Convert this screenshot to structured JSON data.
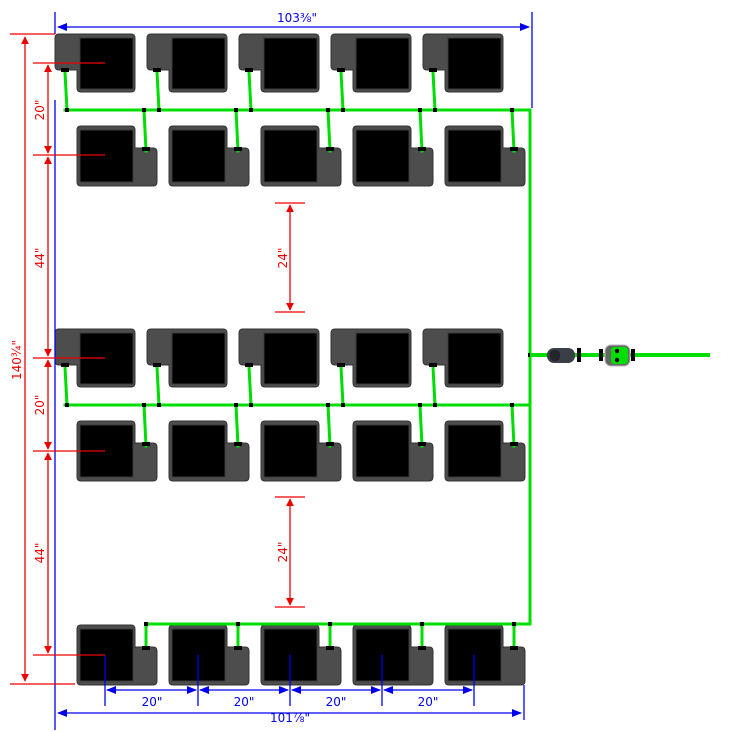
{
  "dimensions": {
    "top_width": "103⅜\"",
    "bottom_width": "101⅞\"",
    "total_height": "140¾\"",
    "row_spacing_1": "20\"",
    "group_spacing_1": "44\"",
    "row_spacing_2": "20\"",
    "group_spacing_2": "44\"",
    "gap_1": "24\"",
    "gap_2": "24\"",
    "pot_spacing": [
      "20\"",
      "20\"",
      "20\"",
      "20\""
    ]
  },
  "colors": {
    "tubing": "#00dd00",
    "pot_body": "#4d4d4d",
    "pot_inner": "#000000",
    "dimension_blue": "#0000ee",
    "dimension_red": "#ee0000"
  },
  "icons": {
    "inlet_connector": "hose-connector-icon",
    "timer": "water-timer-icon"
  }
}
